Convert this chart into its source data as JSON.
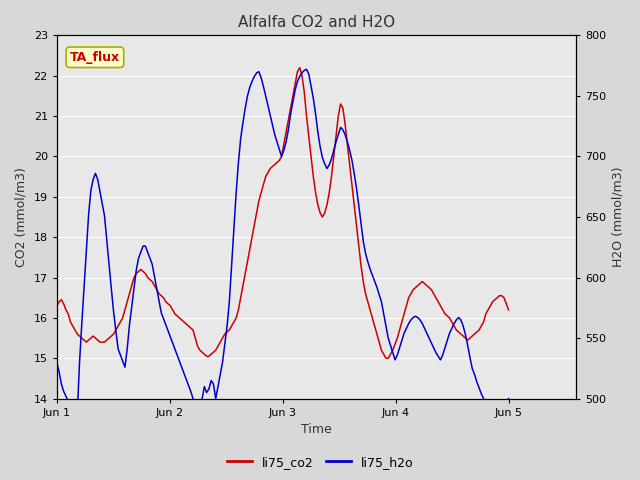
{
  "title": "Alfalfa CO2 and H2O",
  "xlabel": "Time",
  "ylabel_left": "CO2 (mmol/m3)",
  "ylabel_right": "H2O (mmol/m3)",
  "annotation": "TA_flux",
  "ylim_left": [
    14.0,
    23.0
  ],
  "ylim_right": [
    500,
    800
  ],
  "yticks_left": [
    14.0,
    15.0,
    16.0,
    17.0,
    18.0,
    19.0,
    20.0,
    21.0,
    22.0,
    23.0
  ],
  "yticks_right": [
    500,
    550,
    600,
    650,
    700,
    750,
    800
  ],
  "xtick_labels": [
    "Jun 1",
    "Jun 2",
    "Jun 3",
    "Jun 4",
    "Jun 5"
  ],
  "xtick_positions": [
    0,
    1,
    2,
    3,
    4
  ],
  "xlim": [
    0,
    4.6
  ],
  "background_color": "#e8e8e8",
  "fig_bg_color": "#d8d8d8",
  "grid_color": "#ffffff",
  "co2_color": "#cc0000",
  "h2o_color": "#0000cc",
  "legend_co2": "li75_co2",
  "legend_h2o": "li75_h2o",
  "annotation_bg": "#ffffcc",
  "annotation_border": "#aaaa00",
  "annotation_text_color": "#cc0000",
  "co2_data": [
    16.3,
    16.4,
    16.45,
    16.35,
    16.2,
    16.1,
    15.9,
    15.8,
    15.7,
    15.6,
    15.55,
    15.5,
    15.45,
    15.4,
    15.45,
    15.5,
    15.55,
    15.5,
    15.45,
    15.4,
    15.4,
    15.4,
    15.45,
    15.5,
    15.55,
    15.6,
    15.7,
    15.8,
    15.9,
    16.0,
    16.2,
    16.4,
    16.6,
    16.8,
    17.0,
    17.1,
    17.15,
    17.2,
    17.15,
    17.1,
    17.0,
    16.95,
    16.9,
    16.8,
    16.7,
    16.6,
    16.55,
    16.5,
    16.4,
    16.35,
    16.3,
    16.2,
    16.1,
    16.05,
    16.0,
    15.95,
    15.9,
    15.85,
    15.8,
    15.75,
    15.7,
    15.5,
    15.3,
    15.2,
    15.15,
    15.1,
    15.05,
    15.05,
    15.1,
    15.15,
    15.2,
    15.3,
    15.4,
    15.5,
    15.6,
    15.65,
    15.7,
    15.8,
    15.9,
    16.0,
    16.2,
    16.5,
    16.8,
    17.1,
    17.4,
    17.7,
    18.0,
    18.3,
    18.6,
    18.9,
    19.1,
    19.3,
    19.5,
    19.6,
    19.7,
    19.75,
    19.8,
    19.85,
    19.9,
    20.0,
    20.3,
    20.6,
    20.9,
    21.2,
    21.5,
    21.8,
    22.1,
    22.2,
    22.0,
    21.6,
    21.0,
    20.5,
    20.0,
    19.5,
    19.1,
    18.8,
    18.6,
    18.5,
    18.6,
    18.8,
    19.1,
    19.5,
    20.0,
    20.5,
    21.0,
    21.3,
    21.2,
    20.8,
    20.3,
    19.8,
    19.3,
    18.8,
    18.3,
    17.8,
    17.3,
    16.9,
    16.6,
    16.4,
    16.2,
    16.0,
    15.8,
    15.6,
    15.4,
    15.2,
    15.1,
    15.0,
    15.0,
    15.1,
    15.2,
    15.35,
    15.5,
    15.7,
    15.9,
    16.1,
    16.3,
    16.5,
    16.6,
    16.7,
    16.75,
    16.8,
    16.85,
    16.9,
    16.85,
    16.8,
    16.75,
    16.7,
    16.6,
    16.5,
    16.4,
    16.3,
    16.2,
    16.1,
    16.05,
    16.0,
    15.9,
    15.8,
    15.7,
    15.65,
    15.6,
    15.55,
    15.5,
    15.45,
    15.5,
    15.55,
    15.6,
    15.65,
    15.7,
    15.8,
    15.9,
    16.1,
    16.2,
    16.3,
    16.4,
    16.45,
    16.5,
    16.55,
    16.55,
    16.5,
    16.35,
    16.2
  ],
  "h2o_data": [
    530,
    522,
    512,
    506,
    502,
    498,
    495,
    492,
    490,
    487,
    530,
    562,
    592,
    622,
    652,
    672,
    681,
    686,
    681,
    671,
    661,
    651,
    631,
    611,
    591,
    572,
    556,
    541,
    536,
    531,
    526,
    541,
    561,
    576,
    591,
    606,
    616,
    621,
    626,
    626,
    621,
    616,
    611,
    601,
    591,
    581,
    571,
    566,
    561,
    556,
    551,
    546,
    541,
    536,
    531,
    526,
    521,
    516,
    511,
    506,
    500,
    494,
    488,
    493,
    500,
    510,
    505,
    508,
    515,
    512,
    500,
    510,
    520,
    530,
    545,
    560,
    580,
    610,
    640,
    670,
    695,
    715,
    728,
    740,
    750,
    757,
    762,
    766,
    769,
    770,
    765,
    758,
    750,
    742,
    734,
    726,
    718,
    712,
    706,
    700,
    705,
    712,
    722,
    735,
    745,
    755,
    762,
    766,
    769,
    771,
    772,
    768,
    758,
    748,
    735,
    720,
    708,
    699,
    694,
    690,
    693,
    698,
    705,
    712,
    718,
    724,
    722,
    718,
    712,
    705,
    697,
    686,
    674,
    660,
    645,
    630,
    620,
    613,
    607,
    602,
    597,
    592,
    586,
    580,
    570,
    560,
    550,
    544,
    538,
    532,
    536,
    542,
    548,
    554,
    558,
    562,
    565,
    567,
    568,
    567,
    565,
    562,
    558,
    554,
    550,
    546,
    542,
    538,
    535,
    532,
    536,
    542,
    548,
    554,
    558,
    562,
    565,
    567,
    565,
    560,
    553,
    544,
    534,
    525,
    520,
    514,
    509,
    504,
    500,
    495,
    492,
    489,
    487,
    485,
    484,
    483,
    485,
    488,
    494,
    500
  ]
}
